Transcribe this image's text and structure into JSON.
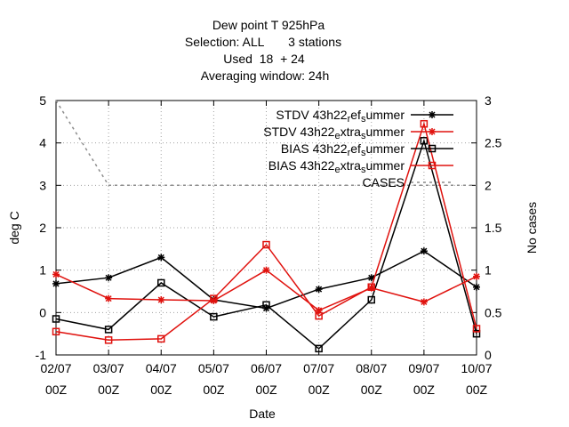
{
  "chart_data": {
    "type": "line",
    "title_lines": [
      "Dew point T 925hPa",
      "Selection: ALL       3 stations",
      "Used  18  + 24",
      "Averaging window: 24h"
    ],
    "xlabel": "Date",
    "ylabel": "deg C",
    "y2label": "No cases",
    "x_ticks": [
      {
        "date": "02/07",
        "time": "00Z"
      },
      {
        "date": "03/07",
        "time": "00Z"
      },
      {
        "date": "04/07",
        "time": "00Z"
      },
      {
        "date": "05/07",
        "time": "00Z"
      },
      {
        "date": "06/07",
        "time": "00Z"
      },
      {
        "date": "07/07",
        "time": "00Z"
      },
      {
        "date": "08/07",
        "time": "00Z"
      },
      {
        "date": "09/07",
        "time": "00Z"
      },
      {
        "date": "10/07",
        "time": "00Z"
      }
    ],
    "ylim": [
      -1,
      5
    ],
    "yticks": [
      "-1",
      "0",
      "1",
      "2",
      "3",
      "4",
      "5"
    ],
    "y2lim": [
      0,
      3
    ],
    "y2ticks": [
      "0",
      "0.5",
      "1",
      "1.5",
      "2",
      "2.5",
      "3"
    ],
    "grid": true,
    "legend_position": "top-right",
    "series": [
      {
        "name": "STDV 43h22 ref summer",
        "legend_parts": [
          [
            "STDV 43h22",
            "n"
          ],
          [
            "r",
            "sub"
          ],
          [
            "ef",
            "n"
          ],
          [
            "s",
            "sub"
          ],
          [
            "ummer",
            "n"
          ]
        ],
        "color": "#000000",
        "marker": "star",
        "axis": "y",
        "values": [
          0.68,
          0.82,
          1.3,
          0.3,
          0.1,
          0.55,
          0.82,
          1.45,
          0.6
        ]
      },
      {
        "name": "STDV 43h22 extra summer",
        "legend_parts": [
          [
            "STDV 43h22",
            "n"
          ],
          [
            "e",
            "sub"
          ],
          [
            "xtra",
            "n"
          ],
          [
            "s",
            "sub"
          ],
          [
            "ummer",
            "n"
          ]
        ],
        "color": "#e0120e",
        "marker": "star",
        "axis": "y",
        "values": [
          0.9,
          0.33,
          0.3,
          0.28,
          1.0,
          0.05,
          0.58,
          0.25,
          0.85
        ]
      },
      {
        "name": "BIAS 43h22 ref summer",
        "legend_parts": [
          [
            "BIAS 43h22",
            "n"
          ],
          [
            "r",
            "sub"
          ],
          [
            "ef",
            "n"
          ],
          [
            "s",
            "sub"
          ],
          [
            "ummer",
            "n"
          ]
        ],
        "color": "#000000",
        "marker": "square",
        "axis": "y",
        "values": [
          -0.15,
          -0.4,
          0.7,
          -0.1,
          0.18,
          -0.85,
          0.3,
          4.05,
          -0.5
        ]
      },
      {
        "name": "BIAS 43h22 extra summer",
        "legend_parts": [
          [
            "BIAS 43h22",
            "n"
          ],
          [
            "e",
            "sub"
          ],
          [
            "xtra",
            "n"
          ],
          [
            "s",
            "sub"
          ],
          [
            "ummer",
            "n"
          ]
        ],
        "color": "#e0120e",
        "marker": "square",
        "axis": "y",
        "values": [
          -0.45,
          -0.65,
          -0.62,
          0.33,
          1.6,
          -0.08,
          0.6,
          4.45,
          -0.38
        ]
      },
      {
        "name": "CASES",
        "legend_parts": [
          [
            "CASES",
            "n"
          ]
        ],
        "color": "#8c8c8c",
        "marker": "none",
        "dashed": true,
        "axis": "y2",
        "values": [
          3,
          2,
          2,
          2,
          2,
          2,
          2,
          2,
          2
        ]
      }
    ]
  }
}
